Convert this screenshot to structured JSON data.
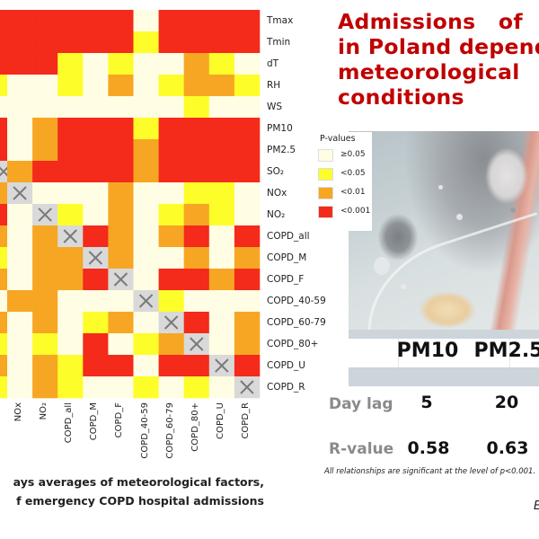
{
  "title": {
    "lines": [
      "Admissions   of   C",
      "in Poland depende",
      "meteorological   a",
      "conditions"
    ],
    "color": "#c00000"
  },
  "legend": {
    "title": "P-values",
    "items": [
      {
        "label": "≥0.05",
        "code": "W",
        "color": "#fffde3"
      },
      {
        "label": "<0.05",
        "code": "Y",
        "color": "#fdfd2a"
      },
      {
        "label": "<0.01",
        "code": "O",
        "color": "#f7a623"
      },
      {
        "label": "<0.001",
        "code": "R",
        "color": "#f42a1a"
      }
    ]
  },
  "chart_data": {
    "type": "heatmap",
    "title": "",
    "value_meaning": "P-value category of correlation (W=≥0.05, Y=<0.05, O=<0.01, R=<0.001, X=diagonal/self)",
    "diagonal_color": "#d9d9d9",
    "row_labels": [
      "Tmax",
      "Tmin",
      "dT",
      "RH",
      "WS",
      "PM10",
      "PM2.5",
      "SO2",
      "NOx",
      "NO2",
      "COPD_all",
      "COPD_M",
      "COPD_F",
      "COPD_40-59",
      "COPD_60-79",
      "COPD_80+",
      "COPD_U",
      "COPD_R"
    ],
    "row_labels_display": [
      "Tmax",
      "Tmin",
      "dT",
      "RH",
      "WS",
      "PM10",
      "PM2.5",
      "SO₂",
      "NOx",
      "NO₂",
      "COPD_all",
      "COPD_M",
      "COPD_F",
      "COPD_40-59",
      "COPD_60-79",
      "COPD_80+",
      "COPD_U",
      "COPD_R"
    ],
    "col_labels": [
      "SO2",
      "NOx",
      "NO2",
      "COPD_all",
      "COPD_M",
      "COPD_F",
      "COPD_40-59",
      "COPD_60-79",
      "COPD_80+",
      "COPD_U",
      "COPD_R"
    ],
    "col_labels_display": [
      "",
      "NOx",
      "NO₂",
      "COPD_all",
      "COPD_M",
      "COPD_F",
      "COPD_40-59",
      "COPD_60-79",
      "COPD_80+",
      "COPD_U",
      "COPD_R"
    ],
    "first_column_partially_visible": true,
    "matrix": [
      [
        "R",
        "R",
        "R",
        "R",
        "R",
        "R",
        "W",
        "R",
        "R",
        "R",
        "R"
      ],
      [
        "R",
        "R",
        "R",
        "R",
        "R",
        "R",
        "Y",
        "R",
        "R",
        "R",
        "R"
      ],
      [
        "R",
        "R",
        "R",
        "Y",
        "W",
        "Y",
        "W",
        "W",
        "O",
        "Y",
        "W"
      ],
      [
        "Y",
        "W",
        "W",
        "Y",
        "W",
        "O",
        "W",
        "Y",
        "O",
        "O",
        "Y"
      ],
      [
        "W",
        "W",
        "W",
        "W",
        "W",
        "W",
        "W",
        "W",
        "Y",
        "W",
        "W"
      ],
      [
        "R",
        "W",
        "O",
        "R",
        "R",
        "R",
        "Y",
        "R",
        "R",
        "R",
        "R"
      ],
      [
        "R",
        "W",
        "O",
        "R",
        "R",
        "R",
        "O",
        "R",
        "R",
        "R",
        "R"
      ],
      [
        "X",
        "O",
        "R",
        "R",
        "R",
        "R",
        "O",
        "R",
        "R",
        "R",
        "R"
      ],
      [
        "O",
        "X",
        "W",
        "W",
        "W",
        "O",
        "W",
        "W",
        "Y",
        "Y",
        "W"
      ],
      [
        "R",
        "W",
        "X",
        "Y",
        "W",
        "O",
        "W",
        "Y",
        "O",
        "Y",
        "W"
      ],
      [
        "O",
        "W",
        "O",
        "X",
        "R",
        "O",
        "W",
        "O",
        "R",
        "W",
        "R"
      ],
      [
        "Y",
        "W",
        "O",
        "O",
        "X",
        "O",
        "W",
        "W",
        "O",
        "W",
        "O"
      ],
      [
        "O",
        "W",
        "O",
        "O",
        "R",
        "X",
        "W",
        "R",
        "R",
        "O",
        "R"
      ],
      [
        "W",
        "O",
        "O",
        "W",
        "W",
        "W",
        "X",
        "Y",
        "W",
        "W",
        "W"
      ],
      [
        "O",
        "W",
        "O",
        "W",
        "Y",
        "O",
        "W",
        "X",
        "R",
        "W",
        "O"
      ],
      [
        "Y",
        "W",
        "Y",
        "W",
        "R",
        "W",
        "Y",
        "O",
        "X",
        "W",
        "O"
      ],
      [
        "O",
        "W",
        "O",
        "Y",
        "R",
        "R",
        "W",
        "R",
        "R",
        "X",
        "R"
      ],
      [
        "Y",
        "W",
        "O",
        "Y",
        "W",
        "W",
        "Y",
        "W",
        "Y",
        "W",
        "X"
      ]
    ]
  },
  "results_table": {
    "columns": [
      "PM10",
      "PM2.5"
    ],
    "rows": [
      {
        "label": "Day lag",
        "values": [
          "5",
          "20"
        ]
      },
      {
        "label": "R-value",
        "values": [
          "0.58",
          "0.63"
        ]
      }
    ],
    "footnote": "All relationships are significant at the level of p<0.001."
  },
  "caption": {
    "lines": [
      "ays averages of meteorological factors,",
      "f emergency COPD hospital admissions"
    ]
  },
  "corner_text": "E"
}
